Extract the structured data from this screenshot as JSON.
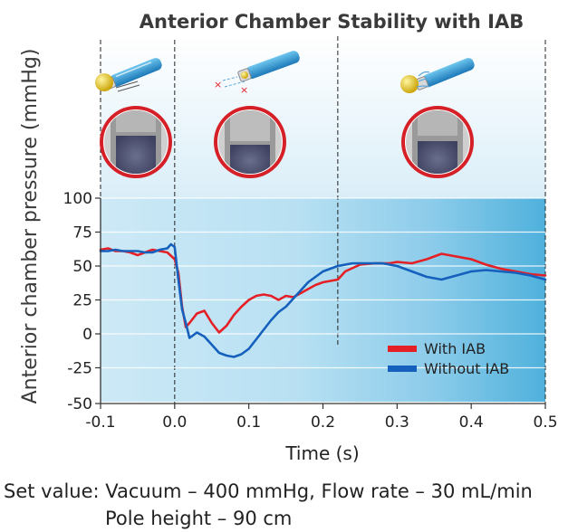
{
  "chart_data": {
    "type": "line",
    "title": "Anterior Chamber Stability with IAB",
    "xlabel": "Time (s)",
    "ylabel": "Anterior chamber pressure (mmHg)",
    "xlim": [
      -0.1,
      0.5
    ],
    "ylim": [
      -50,
      100
    ],
    "xticks": [
      -0.1,
      0.0,
      0.1,
      0.2,
      0.3,
      0.4,
      0.5
    ],
    "xtick_labels": [
      "-0.1",
      "0.0",
      "0.1",
      "0.2",
      "0.3",
      "0.4",
      "0.5"
    ],
    "yticks": [
      100,
      75,
      50,
      25,
      0,
      -25,
      -50
    ],
    "ytick_labels": [
      "100",
      "75",
      "50",
      "25",
      "0",
      "-25",
      "-50"
    ],
    "grid": true,
    "legend_position": "bottom-right",
    "event_lines_x": [
      -0.1,
      0.0,
      0.22,
      0.5
    ],
    "series": [
      {
        "name": "With IAB",
        "color": "#e42026",
        "points": [
          [
            -0.1,
            62
          ],
          [
            -0.09,
            63
          ],
          [
            -0.08,
            61
          ],
          [
            -0.07,
            61
          ],
          [
            -0.06,
            60
          ],
          [
            -0.05,
            58
          ],
          [
            -0.04,
            60
          ],
          [
            -0.03,
            62
          ],
          [
            -0.02,
            61
          ],
          [
            -0.01,
            60
          ],
          [
            0.0,
            55
          ],
          [
            0.005,
            45
          ],
          [
            0.01,
            20
          ],
          [
            0.015,
            5
          ],
          [
            0.02,
            8
          ],
          [
            0.03,
            15
          ],
          [
            0.04,
            17
          ],
          [
            0.05,
            8
          ],
          [
            0.06,
            1
          ],
          [
            0.07,
            6
          ],
          [
            0.08,
            14
          ],
          [
            0.09,
            20
          ],
          [
            0.1,
            25
          ],
          [
            0.11,
            28
          ],
          [
            0.12,
            29
          ],
          [
            0.13,
            28
          ],
          [
            0.14,
            25
          ],
          [
            0.15,
            28
          ],
          [
            0.16,
            27
          ],
          [
            0.17,
            30
          ],
          [
            0.18,
            33
          ],
          [
            0.19,
            36
          ],
          [
            0.2,
            38
          ],
          [
            0.22,
            40
          ],
          [
            0.23,
            46
          ],
          [
            0.25,
            51
          ],
          [
            0.27,
            52
          ],
          [
            0.29,
            52
          ],
          [
            0.3,
            53
          ],
          [
            0.32,
            52
          ],
          [
            0.34,
            55
          ],
          [
            0.36,
            59
          ],
          [
            0.38,
            57
          ],
          [
            0.4,
            55
          ],
          [
            0.42,
            51
          ],
          [
            0.44,
            48
          ],
          [
            0.46,
            46
          ],
          [
            0.48,
            44
          ],
          [
            0.5,
            43
          ]
        ]
      },
      {
        "name": "Without IAB",
        "color": "#1560bd",
        "points": [
          [
            -0.1,
            61
          ],
          [
            -0.09,
            61
          ],
          [
            -0.08,
            62
          ],
          [
            -0.07,
            61
          ],
          [
            -0.06,
            61
          ],
          [
            -0.05,
            61
          ],
          [
            -0.04,
            60
          ],
          [
            -0.03,
            60
          ],
          [
            -0.02,
            62
          ],
          [
            -0.01,
            63
          ],
          [
            -0.005,
            66
          ],
          [
            0.0,
            64
          ],
          [
            0.005,
            40
          ],
          [
            0.01,
            18
          ],
          [
            0.015,
            8
          ],
          [
            0.02,
            -3
          ],
          [
            0.03,
            1
          ],
          [
            0.04,
            -2
          ],
          [
            0.05,
            -8
          ],
          [
            0.06,
            -14
          ],
          [
            0.07,
            -16
          ],
          [
            0.08,
            -17
          ],
          [
            0.09,
            -15
          ],
          [
            0.1,
            -11
          ],
          [
            0.11,
            -4
          ],
          [
            0.12,
            3
          ],
          [
            0.13,
            10
          ],
          [
            0.14,
            16
          ],
          [
            0.15,
            20
          ],
          [
            0.16,
            26
          ],
          [
            0.17,
            32
          ],
          [
            0.18,
            38
          ],
          [
            0.19,
            42
          ],
          [
            0.2,
            46
          ],
          [
            0.21,
            48
          ],
          [
            0.22,
            50
          ],
          [
            0.24,
            52
          ],
          [
            0.26,
            52
          ],
          [
            0.28,
            52
          ],
          [
            0.3,
            50
          ],
          [
            0.32,
            46
          ],
          [
            0.34,
            42
          ],
          [
            0.36,
            40
          ],
          [
            0.38,
            43
          ],
          [
            0.4,
            46
          ],
          [
            0.42,
            47
          ],
          [
            0.44,
            46
          ],
          [
            0.46,
            45
          ],
          [
            0.48,
            43
          ],
          [
            0.5,
            40
          ]
        ]
      }
    ]
  },
  "footnote": {
    "line1": "Set value: Vacuum – 400 mmHg, Flow rate – 30 mL/min",
    "line2": "Pole height – 90 cm"
  }
}
